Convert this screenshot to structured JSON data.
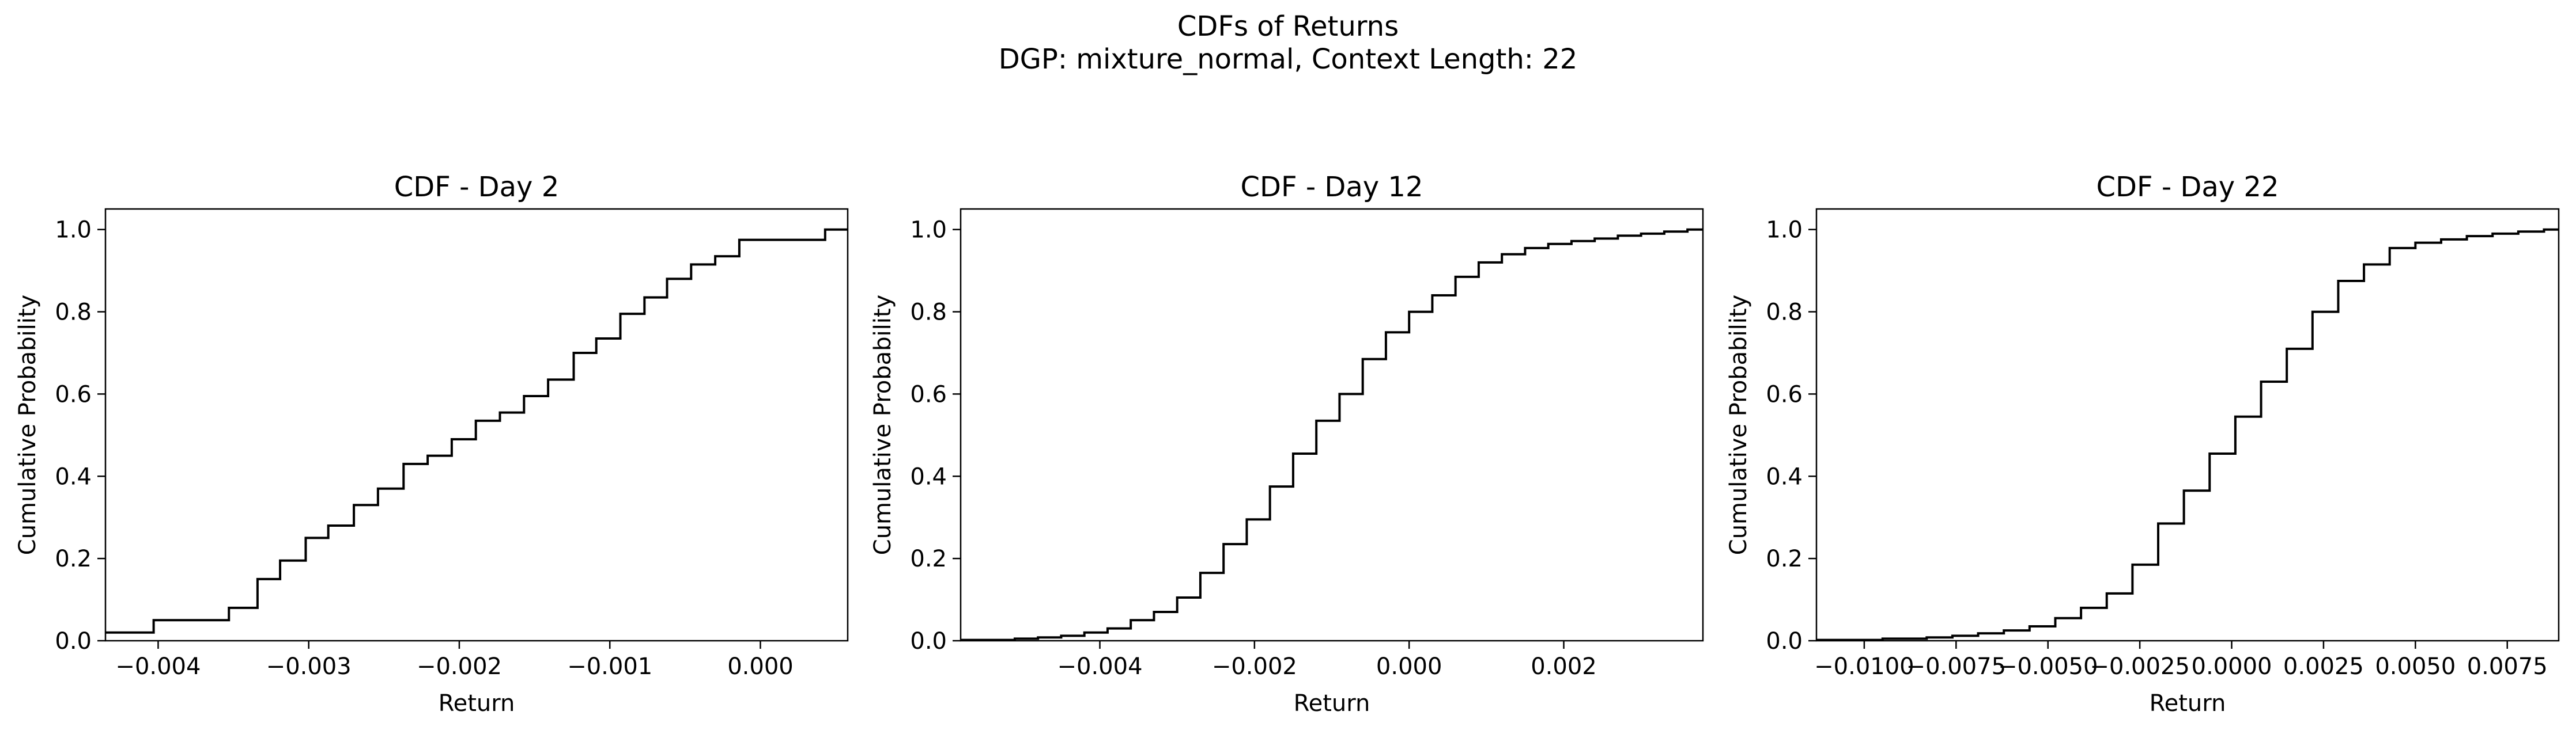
{
  "figure": {
    "title_line1": "CDFs of Returns",
    "title_line2": "DGP: mixture_normal, Context Length: 22"
  },
  "chart_data": [
    {
      "type": "line",
      "step": "post",
      "title": "CDF - Day 2",
      "xlabel": "Return",
      "ylabel": "Cumulative Probability",
      "xlim": [
        -0.00435,
        0.00058
      ],
      "ylim": [
        0.0,
        1.05
      ],
      "xticks": [
        -0.004,
        -0.003,
        -0.002,
        -0.001,
        0.0
      ],
      "xtick_labels": [
        "−0.004",
        "−0.003",
        "−0.002",
        "−0.001",
        "0.000"
      ],
      "yticks": [
        0.0,
        0.2,
        0.4,
        0.6,
        0.8,
        1.0
      ],
      "ytick_labels": [
        "0.0",
        "0.2",
        "0.4",
        "0.6",
        "0.8",
        "1.0"
      ],
      "grid": false,
      "color": "#000000",
      "x": [
        -0.00435,
        -0.00403,
        -0.00353,
        -0.00334,
        -0.00319,
        -0.00302,
        -0.00287,
        -0.0027,
        -0.00254,
        -0.00237,
        -0.00221,
        -0.00205,
        -0.00189,
        -0.00173,
        -0.00157,
        -0.00141,
        -0.00124,
        -0.00109,
        -0.00093,
        -0.00077,
        -0.00062,
        -0.00046,
        -0.0003,
        -0.00014,
        0.00016,
        0.00043,
        0.00058
      ],
      "y": [
        0.02,
        0.05,
        0.08,
        0.15,
        0.195,
        0.25,
        0.28,
        0.33,
        0.37,
        0.43,
        0.45,
        0.49,
        0.535,
        0.555,
        0.595,
        0.635,
        0.7,
        0.735,
        0.795,
        0.835,
        0.88,
        0.915,
        0.935,
        0.975,
        0.975,
        1.0,
        1.0
      ]
    },
    {
      "type": "line",
      "step": "post",
      "title": "CDF - Day 12",
      "xlabel": "Return",
      "ylabel": "Cumulative Probability",
      "xlim": [
        -0.0058,
        0.0038
      ],
      "ylim": [
        0.0,
        1.05
      ],
      "xticks": [
        -0.004,
        -0.002,
        0.0,
        0.002
      ],
      "xtick_labels": [
        "−0.004",
        "−0.002",
        "0.000",
        "0.002"
      ],
      "yticks": [
        0.0,
        0.2,
        0.4,
        0.6,
        0.8,
        1.0
      ],
      "ytick_labels": [
        "0.0",
        "0.2",
        "0.4",
        "0.6",
        "0.8",
        "1.0"
      ],
      "grid": false,
      "color": "#000000",
      "x": [
        -0.0058,
        -0.0051,
        -0.0048,
        -0.0045,
        -0.0042,
        -0.0039,
        -0.0036,
        -0.0033,
        -0.003,
        -0.0027,
        -0.0024,
        -0.0021,
        -0.0018,
        -0.0015,
        -0.0012,
        -0.0009,
        -0.0006,
        -0.0003,
        0.0,
        0.0003,
        0.0006,
        0.0009,
        0.0012,
        0.0015,
        0.0018,
        0.0021,
        0.0024,
        0.0027,
        0.003,
        0.0033,
        0.0036,
        0.0038
      ],
      "y": [
        0.002,
        0.005,
        0.008,
        0.012,
        0.02,
        0.03,
        0.05,
        0.07,
        0.105,
        0.165,
        0.235,
        0.295,
        0.375,
        0.455,
        0.535,
        0.6,
        0.685,
        0.75,
        0.8,
        0.84,
        0.885,
        0.92,
        0.94,
        0.955,
        0.965,
        0.972,
        0.978,
        0.985,
        0.99,
        0.995,
        1.0,
        1.0
      ]
    },
    {
      "type": "line",
      "step": "post",
      "title": "CDF - Day 22",
      "xlabel": "Return",
      "ylabel": "Cumulative Probability",
      "xlim": [
        -0.0113,
        0.0089
      ],
      "ylim": [
        0.0,
        1.05
      ],
      "xticks": [
        -0.01,
        -0.0075,
        -0.005,
        -0.0025,
        0.0,
        0.0025,
        0.005,
        0.0075
      ],
      "xtick_labels": [
        "−0.0100",
        "−0.0075",
        "−0.0050",
        "−0.0025",
        "0.0000",
        "0.0025",
        "0.0050",
        "0.0075"
      ],
      "yticks": [
        0.0,
        0.2,
        0.4,
        0.6,
        0.8,
        1.0
      ],
      "ytick_labels": [
        "0.0",
        "0.2",
        "0.4",
        "0.6",
        "0.8",
        "1.0"
      ],
      "grid": false,
      "color": "#000000",
      "x": [
        -0.0113,
        -0.0095,
        -0.0083,
        -0.0076,
        -0.0069,
        -0.0062,
        -0.0055,
        -0.0048,
        -0.0041,
        -0.0034,
        -0.0027,
        -0.002,
        -0.0013,
        -0.0006,
        0.0001,
        0.0008,
        0.0015,
        0.0022,
        0.0029,
        0.0036,
        0.0043,
        0.005,
        0.0057,
        0.0064,
        0.0071,
        0.0078,
        0.0085,
        0.0089
      ],
      "y": [
        0.002,
        0.005,
        0.008,
        0.012,
        0.018,
        0.025,
        0.035,
        0.055,
        0.08,
        0.115,
        0.185,
        0.285,
        0.365,
        0.455,
        0.545,
        0.63,
        0.71,
        0.8,
        0.875,
        0.915,
        0.955,
        0.968,
        0.976,
        0.984,
        0.99,
        0.995,
        1.0,
        1.0
      ]
    }
  ]
}
